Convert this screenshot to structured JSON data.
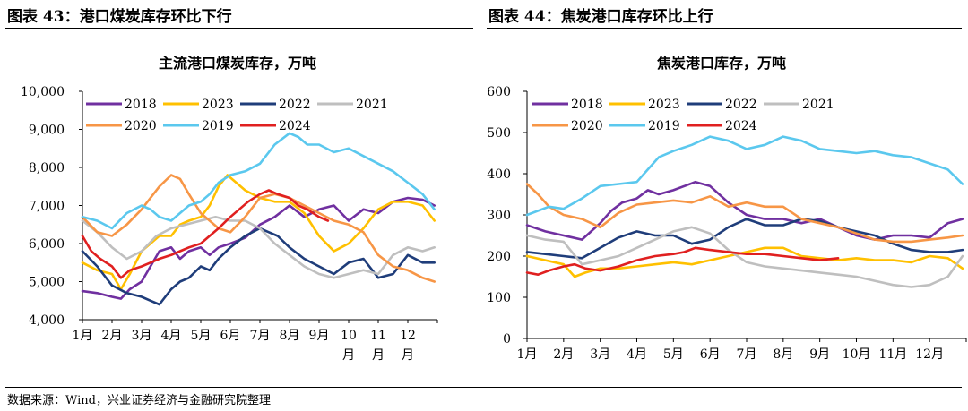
{
  "figure_left_title": "图表 43：港口煤炭库存环比下行",
  "figure_right_title": "图表 44：焦炭港口库存环比上行",
  "source_note": "数据来源：Wind，兴业证券经济与金融研究院整理",
  "colors": {
    "2018": "#7030a0",
    "2023": "#ffc000",
    "2022": "#1f3d7a",
    "2021": "#bfbfbf",
    "2020": "#f79646",
    "2019": "#5bc8ee",
    "2024": "#e02020"
  },
  "chart_data": [
    {
      "type": "line",
      "title": "主流港口煤炭库存，万吨",
      "x_ticks": [
        "1月",
        "2月",
        "3月",
        "4月",
        "5月",
        "6月",
        "7月",
        "8月",
        "9月",
        "10月",
        "11月",
        "12月"
      ],
      "x_tick_labels": [
        "1月",
        "2月",
        "3月",
        "4月",
        "5月",
        "6月",
        "7月",
        "8月",
        "9月",
        "10\n月",
        "11\n月",
        "12\n月"
      ],
      "ylim": [
        4000,
        10000
      ],
      "yticks": [
        4000,
        5000,
        6000,
        7000,
        8000,
        9000,
        10000
      ],
      "ytick_labels": [
        "4,000",
        "5,000",
        "6,000",
        "7,000",
        "8,000",
        "9,000",
        "10,000"
      ],
      "legend": [
        "2018",
        "2023",
        "2022",
        "2021",
        "2020",
        "2019",
        "2024"
      ],
      "legend_position": "top",
      "grid": false,
      "series": [
        {
          "name": "2018",
          "x": [
            1.0,
            1.5,
            2.0,
            2.3,
            2.6,
            3.0,
            3.3,
            3.6,
            4.0,
            4.3,
            4.6,
            5.0,
            5.3,
            5.6,
            6.0,
            6.5,
            7.0,
            7.5,
            8.0,
            8.5,
            9.0,
            9.5,
            10.0,
            10.5,
            11.0,
            11.5,
            12.0,
            12.5,
            12.9
          ],
          "y": [
            4750,
            4700,
            4600,
            4550,
            4800,
            5000,
            5400,
            5800,
            5900,
            5600,
            5800,
            5900,
            5700,
            5900,
            6000,
            6150,
            6500,
            6700,
            7000,
            6700,
            6900,
            7000,
            6600,
            6900,
            6800,
            7100,
            7200,
            7150,
            7000
          ]
        },
        {
          "name": "2023",
          "x": [
            1.0,
            1.5,
            2.0,
            2.3,
            2.6,
            3.0,
            3.3,
            3.6,
            4.0,
            4.3,
            4.6,
            5.0,
            5.3,
            5.6,
            5.9,
            6.2,
            6.5,
            7.0,
            7.5,
            8.0,
            8.5,
            9.0,
            9.5,
            10.0,
            10.5,
            11.0,
            11.5,
            12.0,
            12.5,
            12.9
          ],
          "y": [
            5500,
            5300,
            5200,
            4800,
            5200,
            5800,
            6000,
            6200,
            6200,
            6500,
            6600,
            6700,
            7000,
            7500,
            7800,
            7600,
            7400,
            7200,
            7100,
            7100,
            6800,
            6200,
            5800,
            6000,
            6400,
            6900,
            7100,
            7100,
            7000,
            6600
          ]
        },
        {
          "name": "2022",
          "x": [
            1.0,
            1.5,
            2.0,
            2.5,
            3.0,
            3.3,
            3.6,
            4.0,
            4.3,
            4.6,
            5.0,
            5.3,
            5.6,
            6.0,
            6.5,
            7.0,
            7.3,
            7.6,
            8.0,
            8.5,
            9.0,
            9.5,
            10.0,
            10.5,
            11.0,
            11.5,
            12.0,
            12.5,
            12.9
          ],
          "y": [
            5800,
            5400,
            4900,
            4700,
            4600,
            4500,
            4400,
            4800,
            5000,
            5100,
            5400,
            5300,
            5600,
            5900,
            6200,
            6400,
            6300,
            6200,
            5900,
            5600,
            5400,
            5200,
            5500,
            5600,
            5100,
            5200,
            5700,
            5500,
            5500
          ]
        },
        {
          "name": "2021",
          "x": [
            1.0,
            1.5,
            2.0,
            2.5,
            3.0,
            3.5,
            4.0,
            4.5,
            5.0,
            5.5,
            6.0,
            6.5,
            7.0,
            7.5,
            8.0,
            8.5,
            9.0,
            9.5,
            10.0,
            10.5,
            11.0,
            11.5,
            12.0,
            12.5,
            12.9
          ],
          "y": [
            6600,
            6300,
            5900,
            5600,
            5800,
            6200,
            6400,
            6500,
            6600,
            6700,
            6600,
            6600,
            6400,
            6000,
            5700,
            5400,
            5200,
            5100,
            5200,
            5300,
            5200,
            5700,
            5900,
            5800,
            5900
          ]
        },
        {
          "name": "2020",
          "x": [
            1.0,
            1.5,
            2.0,
            2.5,
            3.0,
            3.3,
            3.6,
            4.0,
            4.3,
            4.6,
            5.0,
            5.3,
            5.6,
            6.0,
            6.5,
            7.0,
            7.5,
            8.0,
            8.5,
            9.0,
            9.5,
            10.0,
            10.5,
            11.0,
            11.5,
            12.0,
            12.5,
            12.9
          ],
          "y": [
            6700,
            6300,
            6200,
            6500,
            6900,
            7200,
            7500,
            7800,
            7700,
            7300,
            6800,
            6600,
            6400,
            6300,
            6700,
            7200,
            7300,
            7200,
            7000,
            6800,
            6600,
            6500,
            6300,
            5700,
            5400,
            5300,
            5100,
            5000
          ]
        },
        {
          "name": "2019",
          "x": [
            1.0,
            1.5,
            2.0,
            2.5,
            3.0,
            3.3,
            3.6,
            4.0,
            4.3,
            4.6,
            5.0,
            5.3,
            5.6,
            6.0,
            6.5,
            7.0,
            7.5,
            8.0,
            8.3,
            8.6,
            9.0,
            9.5,
            10.0,
            10.5,
            11.0,
            11.5,
            12.0,
            12.5,
            12.9
          ],
          "y": [
            6700,
            6600,
            6400,
            6800,
            7000,
            6900,
            6700,
            6600,
            6800,
            7000,
            7100,
            7300,
            7600,
            7800,
            7900,
            8100,
            8600,
            8900,
            8800,
            8600,
            8600,
            8400,
            8500,
            8300,
            8100,
            7900,
            7600,
            7300,
            6900
          ]
        },
        {
          "name": "2024",
          "x": [
            1.0,
            1.3,
            1.6,
            2.0,
            2.3,
            2.6,
            3.0,
            3.3,
            3.6,
            4.0,
            4.3,
            4.6,
            5.0,
            5.3,
            5.6,
            6.0,
            6.3,
            6.6,
            7.0,
            7.3,
            7.6,
            8.0,
            8.3,
            8.6,
            9.0,
            9.3
          ],
          "y": [
            6200,
            5800,
            5600,
            5400,
            5100,
            5300,
            5400,
            5500,
            5600,
            5700,
            5800,
            5900,
            6000,
            6200,
            6400,
            6700,
            6900,
            7100,
            7300,
            7400,
            7300,
            7200,
            7000,
            6900,
            6700,
            6600
          ]
        }
      ]
    },
    {
      "type": "line",
      "title": "焦炭港口库存，万吨",
      "x_ticks": [
        "1月",
        "2月",
        "3月",
        "4月",
        "5月",
        "6月",
        "7月",
        "8月",
        "9月",
        "10月",
        "11月",
        "12月"
      ],
      "x_tick_labels": [
        "1月",
        "2月",
        "3月",
        "4月",
        "5月",
        "6月",
        "7月",
        "8月",
        "9月",
        "10月",
        "11月",
        "12月"
      ],
      "ylim": [
        0,
        600
      ],
      "yticks": [
        0,
        100,
        200,
        300,
        400,
        500,
        600
      ],
      "ytick_labels": [
        "0",
        "100",
        "200",
        "300",
        "400",
        "500",
        "600"
      ],
      "legend": [
        "2018",
        "2023",
        "2022",
        "2021",
        "2020",
        "2019",
        "2024"
      ],
      "legend_position": "top",
      "grid": false,
      "series": [
        {
          "name": "2018",
          "x": [
            1.0,
            1.5,
            2.0,
            2.5,
            3.0,
            3.3,
            3.6,
            4.0,
            4.3,
            4.6,
            5.0,
            5.3,
            5.6,
            6.0,
            6.5,
            7.0,
            7.5,
            8.0,
            8.5,
            9.0,
            9.5,
            10.0,
            10.5,
            11.0,
            11.5,
            12.0,
            12.5,
            12.9
          ],
          "y": [
            275,
            260,
            250,
            240,
            280,
            310,
            330,
            340,
            360,
            350,
            360,
            370,
            380,
            370,
            330,
            300,
            290,
            290,
            280,
            290,
            270,
            250,
            240,
            250,
            250,
            245,
            280,
            290
          ]
        },
        {
          "name": "2023",
          "x": [
            1.0,
            1.5,
            2.0,
            2.3,
            2.6,
            3.0,
            3.5,
            4.0,
            4.5,
            5.0,
            5.5,
            6.0,
            6.5,
            7.0,
            7.5,
            8.0,
            8.5,
            9.0,
            9.5,
            10.0,
            10.5,
            11.0,
            11.5,
            12.0,
            12.5,
            12.9
          ],
          "y": [
            200,
            190,
            180,
            150,
            160,
            170,
            170,
            175,
            180,
            185,
            180,
            190,
            200,
            210,
            220,
            220,
            200,
            195,
            190,
            195,
            190,
            190,
            185,
            200,
            195,
            170
          ]
        },
        {
          "name": "2022",
          "x": [
            1.0,
            1.5,
            2.0,
            2.5,
            3.0,
            3.5,
            4.0,
            4.5,
            5.0,
            5.5,
            6.0,
            6.5,
            7.0,
            7.5,
            8.0,
            8.5,
            9.0,
            9.5,
            10.0,
            10.5,
            11.0,
            11.5,
            12.0,
            12.5,
            12.9
          ],
          "y": [
            210,
            205,
            200,
            195,
            220,
            245,
            260,
            250,
            250,
            230,
            240,
            270,
            290,
            275,
            275,
            290,
            285,
            270,
            260,
            250,
            230,
            215,
            210,
            210,
            215
          ]
        },
        {
          "name": "2021",
          "x": [
            1.0,
            1.5,
            2.0,
            2.5,
            3.0,
            3.5,
            4.0,
            4.5,
            5.0,
            5.5,
            6.0,
            6.5,
            7.0,
            7.5,
            8.0,
            8.5,
            9.0,
            9.5,
            10.0,
            10.5,
            11.0,
            11.5,
            12.0,
            12.5,
            12.9
          ],
          "y": [
            250,
            240,
            235,
            180,
            190,
            200,
            220,
            240,
            260,
            270,
            255,
            215,
            185,
            175,
            170,
            165,
            160,
            155,
            150,
            140,
            130,
            125,
            130,
            150,
            200
          ]
        },
        {
          "name": "2020",
          "x": [
            1.0,
            1.3,
            1.6,
            2.0,
            2.5,
            3.0,
            3.5,
            4.0,
            4.5,
            5.0,
            5.5,
            6.0,
            6.5,
            7.0,
            7.5,
            8.0,
            8.5,
            9.0,
            9.5,
            10.0,
            10.5,
            11.0,
            11.5,
            12.0,
            12.5,
            12.9
          ],
          "y": [
            375,
            350,
            320,
            300,
            290,
            270,
            305,
            325,
            330,
            335,
            330,
            345,
            320,
            330,
            320,
            320,
            290,
            280,
            270,
            255,
            240,
            235,
            235,
            240,
            245,
            250
          ]
        },
        {
          "name": "2019",
          "x": [
            1.0,
            1.3,
            1.6,
            2.0,
            2.5,
            3.0,
            3.5,
            4.0,
            4.3,
            4.6,
            5.0,
            5.5,
            6.0,
            6.5,
            7.0,
            7.5,
            8.0,
            8.5,
            9.0,
            9.5,
            10.0,
            10.5,
            11.0,
            11.5,
            12.0,
            12.5,
            12.9
          ],
          "y": [
            300,
            310,
            320,
            315,
            340,
            370,
            375,
            380,
            410,
            440,
            455,
            470,
            490,
            480,
            460,
            470,
            490,
            480,
            460,
            455,
            450,
            455,
            445,
            440,
            425,
            410,
            375
          ]
        },
        {
          "name": "2024",
          "x": [
            1.0,
            1.3,
            1.6,
            2.0,
            2.3,
            2.6,
            3.0,
            3.5,
            4.0,
            4.5,
            5.0,
            5.3,
            5.6,
            6.0,
            6.5,
            7.0,
            7.5,
            8.0,
            8.5,
            9.0,
            9.5
          ],
          "y": [
            160,
            155,
            165,
            175,
            180,
            170,
            165,
            175,
            190,
            200,
            205,
            210,
            220,
            215,
            210,
            205,
            205,
            200,
            195,
            190,
            195
          ]
        }
      ]
    }
  ]
}
